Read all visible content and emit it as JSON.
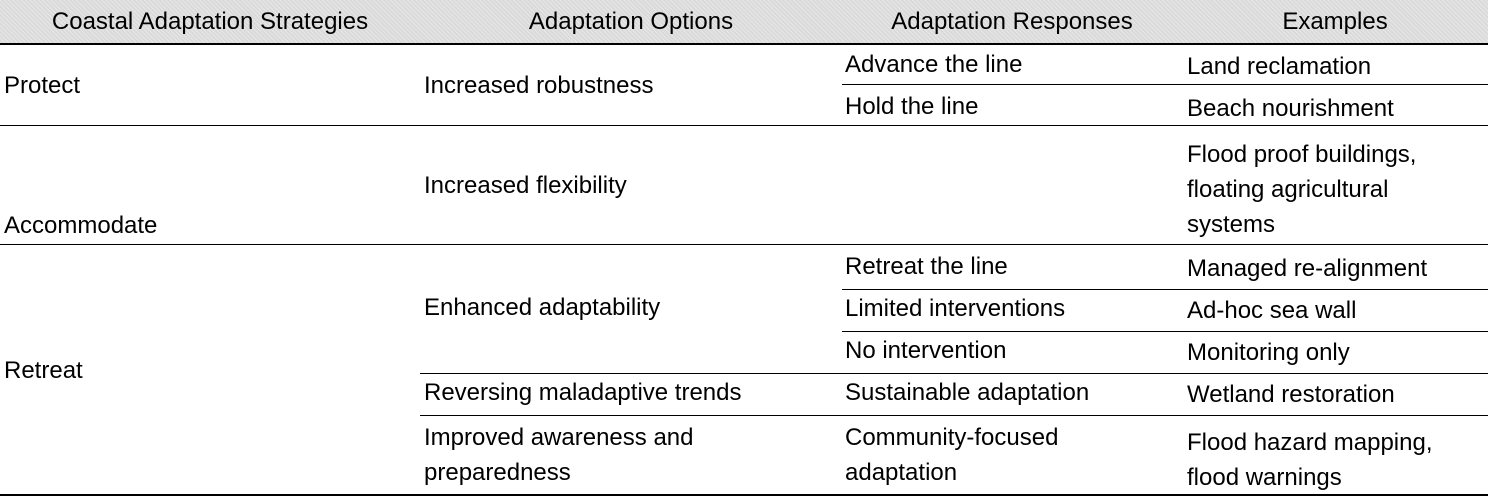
{
  "table": {
    "headers": [
      "Coastal Adaptation Strategies",
      "Adaptation Options",
      "Adaptation Responses",
      "Examples"
    ],
    "rows": [
      {
        "strategy": "Protect",
        "option": "Increased robustness",
        "response": "Advance the line",
        "example": "Land reclamation"
      },
      {
        "strategy": "Protect",
        "option": "Increased robustness",
        "response": "Hold the line",
        "example": "Beach nourishment"
      },
      {
        "strategy": "Accommodate",
        "option": "Increased flexibility",
        "response": "",
        "example": [
          "Flood proof buildings,",
          "floating agricultural",
          "systems"
        ]
      },
      {
        "strategy": "Retreat",
        "option": "Enhanced adaptability",
        "response": "Retreat the line",
        "example": "Managed re-alignment"
      },
      {
        "strategy": "Retreat",
        "option": "Enhanced adaptability",
        "response": "Limited interventions",
        "example": "Ad-hoc sea wall"
      },
      {
        "strategy": "Retreat",
        "option": "Enhanced adaptability",
        "response": "No intervention",
        "example": "Monitoring only"
      },
      {
        "strategy": "Retreat",
        "option": "Reversing maladaptive trends",
        "response": "Sustainable adaptation",
        "example": "Wetland restoration"
      },
      {
        "strategy": "Retreat",
        "option": [
          "Improved awareness and",
          "preparedness"
        ],
        "response": [
          "Community-focused",
          "adaptation"
        ],
        "example": [
          "Flood hazard mapping,",
          "flood warnings"
        ]
      }
    ]
  }
}
